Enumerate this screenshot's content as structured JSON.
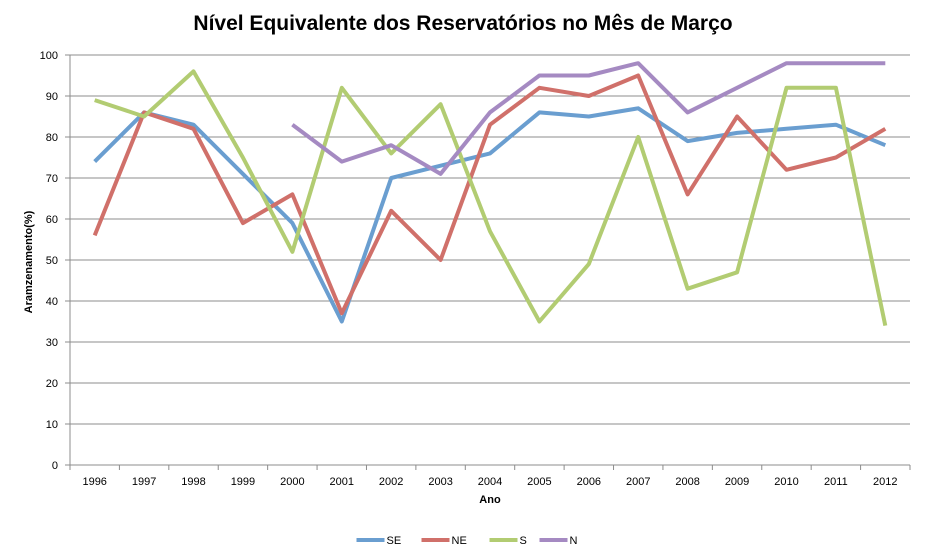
{
  "chart_data": {
    "type": "line",
    "title": "Nível Equivalente dos Reservatórios no Mês de Março",
    "xlabel": "Ano",
    "ylabel": "Aramzenamento(%)",
    "categories": [
      "1996",
      "1997",
      "1998",
      "1999",
      "2000",
      "2001",
      "2002",
      "2003",
      "2004",
      "2005",
      "2006",
      "2007",
      "2008",
      "2009",
      "2010",
      "2011",
      "2012"
    ],
    "ylim": [
      0,
      100
    ],
    "yticks": [
      "0",
      "10",
      "20",
      "30",
      "40",
      "50",
      "60",
      "70",
      "80",
      "90",
      "100"
    ],
    "grid": true,
    "legend_position": "bottom",
    "series": [
      {
        "name": "SE",
        "color": "#6a9ed0",
        "values": [
          74,
          86,
          83,
          71,
          59,
          35,
          70,
          73,
          76,
          86,
          85,
          87,
          79,
          81,
          82,
          83,
          78
        ]
      },
      {
        "name": "NE",
        "color": "#d0706a",
        "values": [
          56,
          86,
          82,
          59,
          66,
          37,
          62,
          50,
          83,
          92,
          90,
          95,
          66,
          85,
          72,
          75,
          82
        ]
      },
      {
        "name": "S",
        "color": "#b2cc72",
        "values": [
          89,
          85,
          96,
          75,
          52,
          92,
          76,
          88,
          57,
          35,
          49,
          80,
          43,
          47,
          92,
          92,
          34
        ]
      },
      {
        "name": "N",
        "color": "#a58ac2",
        "values": [
          null,
          null,
          null,
          null,
          83,
          74,
          78,
          71,
          86,
          95,
          95,
          98,
          86,
          92,
          98,
          98,
          98
        ]
      }
    ]
  }
}
